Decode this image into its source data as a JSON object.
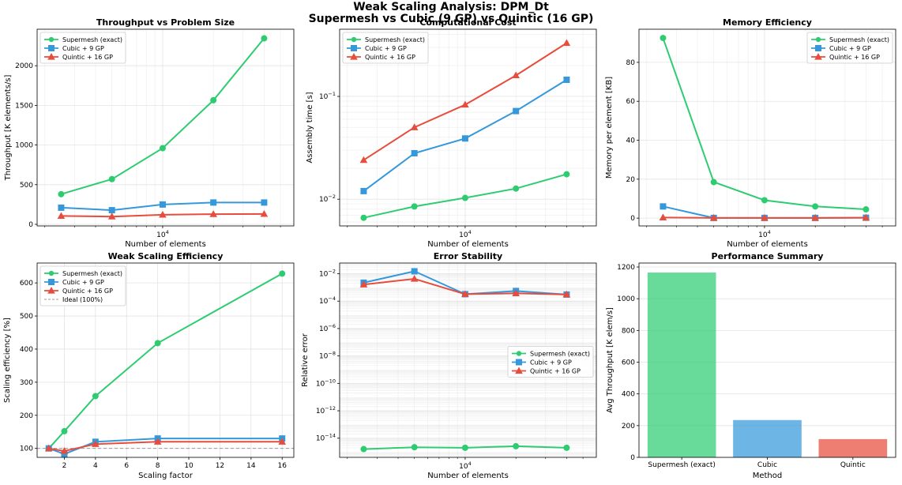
{
  "figure": {
    "title_line1": "Weak Scaling Analysis: DPM_Dt",
    "title_line2": "Supermesh vs Cubic (9 GP) vs Quintic (16 GP)"
  },
  "colors": {
    "supermesh": "#2ecc71",
    "cubic": "#3498db",
    "quintic": "#e74c3c"
  },
  "chart_data": [
    {
      "id": "throughput",
      "type": "line",
      "title": "Throughput vs Problem Size",
      "xlabel": "Number of elements",
      "ylabel": "Throughput [K elements/s]",
      "xscale": "log",
      "xticks": [
        {
          "v": 10000,
          "label": "10^4"
        }
      ],
      "yticks": [
        0,
        500,
        1000,
        1500,
        2000
      ],
      "xlim": [
        1800,
        60000
      ],
      "ylim": [
        -20,
        2460
      ],
      "grid": true,
      "legend": "top-left",
      "x": [
        2500,
        5000,
        10000,
        20000,
        40000
      ],
      "series": [
        {
          "name": "Supermesh (exact)",
          "marker": "circle",
          "values": [
            380,
            570,
            960,
            1565,
            2345
          ]
        },
        {
          "name": "Cubic + 9 GP",
          "marker": "square",
          "values": [
            210,
            178,
            250,
            275,
            275
          ]
        },
        {
          "name": "Quintic + 16 GP",
          "marker": "triangle",
          "values": [
            105,
            98,
            120,
            128,
            130
          ]
        }
      ]
    },
    {
      "id": "cost",
      "type": "line",
      "title": "Computational Cost",
      "xlabel": "Number of elements",
      "ylabel": "Assembly time [s]",
      "xscale": "log",
      "yscale": "log",
      "xticks": [
        {
          "v": 10000,
          "label": "10^4"
        }
      ],
      "yticks": [
        {
          "v": 0.01,
          "label": "10^-2"
        },
        {
          "v": 0.1,
          "label": "10^-1"
        }
      ],
      "xlim": [
        1800,
        60000
      ],
      "ylim": [
        0.0055,
        0.45
      ],
      "grid": true,
      "legend": "top-left",
      "x": [
        2500,
        5000,
        10000,
        20000,
        40000
      ],
      "series": [
        {
          "name": "Supermesh (exact)",
          "marker": "circle",
          "values": [
            0.0066,
            0.0085,
            0.0103,
            0.0127,
            0.0175
          ]
        },
        {
          "name": "Cubic + 9 GP",
          "marker": "square",
          "values": [
            0.012,
            0.028,
            0.039,
            0.072,
            0.145
          ]
        },
        {
          "name": "Quintic + 16 GP",
          "marker": "triangle",
          "values": [
            0.024,
            0.05,
            0.083,
            0.16,
            0.33
          ]
        }
      ]
    },
    {
      "id": "memory",
      "type": "line",
      "title": "Memory Efficiency",
      "xlabel": "Number of elements",
      "ylabel": "Memory per element [KB]",
      "xscale": "log",
      "xticks": [
        {
          "v": 10000,
          "label": "10^4"
        }
      ],
      "yticks": [
        0,
        20,
        40,
        60,
        80
      ],
      "xlim": [
        1800,
        60000
      ],
      "ylim": [
        -4,
        97
      ],
      "grid": true,
      "legend": "top-right",
      "x": [
        2500,
        5000,
        10000,
        20000,
        40000
      ],
      "series": [
        {
          "name": "Supermesh (exact)",
          "marker": "circle",
          "values": [
            92.5,
            18.5,
            9.2,
            6.0,
            4.5
          ]
        },
        {
          "name": "Cubic + 9 GP",
          "marker": "square",
          "values": [
            6.0,
            0.1,
            0.1,
            0.1,
            0.2
          ]
        },
        {
          "name": "Quintic + 16 GP",
          "marker": "triangle",
          "values": [
            0.3,
            0.1,
            0.1,
            0.1,
            0.2
          ]
        }
      ]
    },
    {
      "id": "efficiency",
      "type": "line",
      "title": "Weak Scaling Efficiency",
      "xlabel": "Scaling factor",
      "ylabel": "Scaling efficiency [%]",
      "xticks": [
        2,
        4,
        6,
        8,
        10,
        12,
        14,
        16
      ],
      "yticks": [
        100,
        200,
        300,
        400,
        500,
        600
      ],
      "xlim": [
        0.25,
        16.75
      ],
      "ylim": [
        73,
        660
      ],
      "grid": true,
      "legend": "top-left",
      "x": [
        1,
        2,
        4,
        8,
        16
      ],
      "series": [
        {
          "name": "Supermesh (exact)",
          "marker": "circle",
          "values": [
            100,
            152,
            258,
            418,
            628
          ]
        },
        {
          "name": "Cubic + 9 GP",
          "marker": "square",
          "values": [
            100,
            83,
            120,
            130,
            130
          ]
        },
        {
          "name": "Quintic + 16 GP",
          "marker": "triangle",
          "values": [
            100,
            92,
            113,
            120,
            120
          ]
        }
      ],
      "reference": {
        "name": "Ideal (100%)",
        "value": 100
      }
    },
    {
      "id": "error",
      "type": "line",
      "title": "Error Stability",
      "xlabel": "Number of elements",
      "ylabel": "Relative error",
      "xscale": "log",
      "yscale": "log",
      "xticks": [
        {
          "v": 10000,
          "label": "10^4"
        }
      ],
      "yticks": [
        {
          "v": 1e-14,
          "label": "10^-14"
        },
        {
          "v": 1e-12,
          "label": "10^-12"
        },
        {
          "v": 1e-10,
          "label": "10^-10"
        },
        {
          "v": 1e-08,
          "label": "10^-8"
        },
        {
          "v": 1e-06,
          "label": "10^-6"
        },
        {
          "v": 0.0001,
          "label": "10^-4"
        },
        {
          "v": 0.01,
          "label": "10^-2"
        }
      ],
      "xlim": [
        1800,
        60000
      ],
      "ylim": [
        4e-16,
        0.06
      ],
      "grid": true,
      "legend": "center-right",
      "x": [
        2500,
        5000,
        10000,
        20000,
        40000
      ],
      "series": [
        {
          "name": "Supermesh (exact)",
          "marker": "circle",
          "values": [
            1.6e-15,
            2.2e-15,
            2e-15,
            2.6e-15,
            2e-15
          ]
        },
        {
          "name": "Cubic + 9 GP",
          "marker": "square",
          "values": [
            0.0022,
            0.015,
            0.00032,
            0.00055,
            0.0003
          ]
        },
        {
          "name": "Quintic + 16 GP",
          "marker": "triangle",
          "values": [
            0.0016,
            0.0042,
            0.00032,
            0.00037,
            0.0003
          ]
        }
      ]
    },
    {
      "id": "summary",
      "type": "bar",
      "title": "Performance Summary",
      "xlabel": "Method",
      "ylabel": "Avg Throughput [K elem/s]",
      "yticks": [
        0,
        200,
        400,
        600,
        800,
        1000,
        1200
      ],
      "ylim": [
        0,
        1225
      ],
      "grid": true,
      "categories": [
        "Supermesh (exact)",
        "Cubic",
        "Quintic"
      ],
      "values": [
        1165,
        235,
        115
      ]
    }
  ]
}
